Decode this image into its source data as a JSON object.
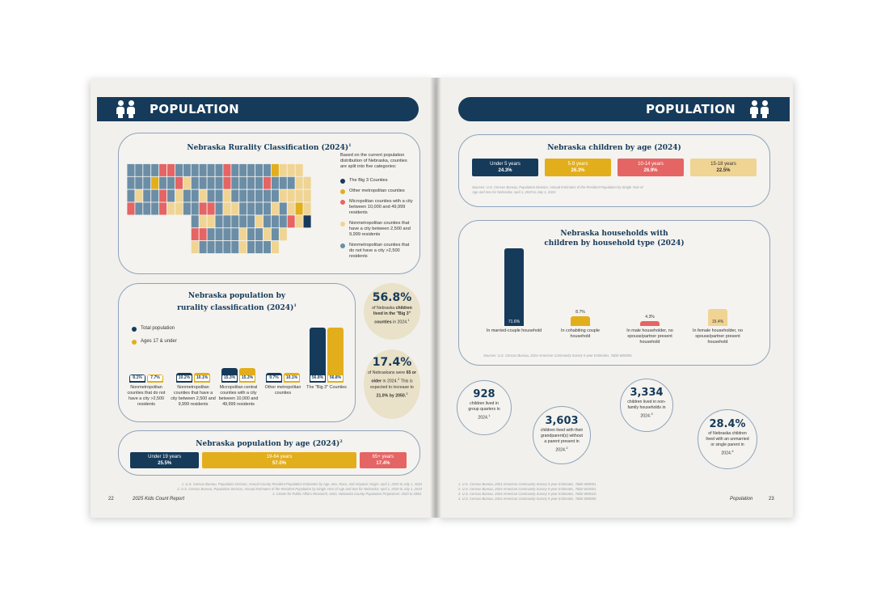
{
  "left": {
    "banner_title": "POPULATION",
    "rurality_map": {
      "title": "Nebraska Rurality Classification (2024)",
      "title_sup": "1",
      "intro": "Based on the current population distribution of Nebraska, counties are split into five categories:",
      "legend": [
        {
          "label": "The Big 3 Counties",
          "color": "#163a5a"
        },
        {
          "label": "Other metropolitan counties",
          "color": "#e3ae1c"
        },
        {
          "label": "Micropolitan counties with a city between 10,000 and 49,999 residents",
          "color": "#e56464"
        },
        {
          "label": "Nonmetropolitan counties that have a city between 2,500 and 9,999 residents",
          "color": "#f0d493"
        },
        {
          "label": "Nonmetropolitan counties that do not have a city >2,500 residents",
          "color": "#6b8ea6"
        }
      ]
    },
    "rurality_chart": {
      "title_line1": "Nebraska population by",
      "title_line2": "rurality classification (2024)",
      "title_sup": "1",
      "legend": [
        {
          "label": "Total population",
          "color": "#163a5a"
        },
        {
          "label": "Ages 17 & under",
          "color": "#e3ae1c"
        }
      ],
      "groups": [
        {
          "label": "Nonmetropolitan counties that do not have a city >2,500 residents",
          "total": "8.1%",
          "kids": "7.7%"
        },
        {
          "label": "Nonmetropolitan counties that have a city between 2,500 and 9,999 residents",
          "total": "10.2%",
          "kids": "10.1%"
        },
        {
          "label": "Micropolitan central counties with a city between 10,000 and 49,999 residents",
          "total": "15.3%",
          "kids": "15.3%"
        },
        {
          "label": "Other metropolitan counties",
          "total": "9.7%",
          "kids": "10.1%"
        },
        {
          "label": "The \"Big 3\" Counties",
          "total": "56.8%",
          "kids": "56.8%"
        }
      ]
    },
    "stat_big3": {
      "value": "56.8%",
      "text1": "of Nebraska",
      "text_bold": "children lived in the \"Big 3\" counties",
      "text2": "in 2024.",
      "sup": "1"
    },
    "stat_65": {
      "value": "17.4%",
      "text1": "of Nebraskans were",
      "bold1": "65 or older",
      "text2": "in 2024.",
      "sup1": "2",
      "text3": "This is expected to increase to",
      "bold2": "21.0% by 2050.",
      "sup2": "3"
    },
    "age_chart": {
      "title": "Nebraska population by age (2024)",
      "title_sup": "2",
      "segments": [
        {
          "label": "Under 19 years",
          "value": "25.5%",
          "color": "#163a5a"
        },
        {
          "label": "19-64 years",
          "value": "57.0%",
          "color": "#e3ae1c"
        },
        {
          "label": "65+ years",
          "value": "17.4%",
          "color": "#e56464"
        }
      ]
    },
    "sources": [
      "1. U.S. Census Bureau, Population Division, Annual County Resident Population Estimates by Age, Sex, Race, and Hispanic Origin: April 1, 2020 to July 1, 2024",
      "2. U.S. Census Bureau, Population Division, Annual Estimates of the Resident Population by Single Year of Age and Sex for Nebraska: April 1, 2020 to July 1, 2024",
      "3. Center for Public Affairs Research, UNO, Nebraska County Population Projections: 2020 to 2050."
    ],
    "page_number": "22",
    "footer_label": "2025 Kids Count Report"
  },
  "right": {
    "banner_title": "POPULATION",
    "children_by_age": {
      "title": "Nebraska children by age (2024)",
      "segments": [
        {
          "label": "Under 5 years",
          "value": "24.3%",
          "color": "#163a5a"
        },
        {
          "label": "5-9 years",
          "value": "26.3%",
          "color": "#e3ae1c"
        },
        {
          "label": "10-14 years",
          "value": "26.9%",
          "color": "#e56464"
        },
        {
          "label": "15-18 years",
          "value": "22.5%",
          "color": "#f0d493"
        }
      ],
      "source": "Sources: U.S. Census Bureau, Population Division, Annual Estimates of the Resident Population by Single Year of Age and Sex for Nebraska: April 1, 2020 to July 1, 2024"
    },
    "households": {
      "title_line1": "Nebraska households with",
      "title_line2": "children by household type (2024)",
      "bars": [
        {
          "label": "In married-couple household",
          "value": 71.6,
          "display": "71.6%",
          "color": "#163a5a"
        },
        {
          "label": "In cohabiting couple household",
          "value": 8.7,
          "display": "8.7%",
          "color": "#e3ae1c"
        },
        {
          "label": "In male householder, no spouse/partner present household",
          "value": 4.3,
          "display": "4.3%",
          "color": "#e56464"
        },
        {
          "label": "In female householder, no spouse/partner present household",
          "value": 15.4,
          "display": "15.4%",
          "color": "#f0d493"
        }
      ],
      "source": "Sources: U.S. Census Bureau, 2024 American Community Survey 5-year Estimates, Table B09005."
    },
    "stats": [
      {
        "value": "928",
        "text": "children lived in group quarters in 2024.",
        "sup": "1"
      },
      {
        "value": "3,603",
        "text": "children lived with their grandparent(s) without a parent present in 2024.",
        "sup": "2"
      },
      {
        "value": "3,334",
        "text": "children lived in non-family households in 2024.",
        "sup": "3"
      },
      {
        "value": "28.4%",
        "text": "of Nebraska children lived with an unmarried or single parent in 2024.",
        "sup": "4"
      }
    ],
    "sources": [
      "1. U.S. Census Bureau, 2024 American Community Survey 5-year Estimates, Table B09001.",
      "2. U.S. Census Bureau, 2024 American Community Survey 5-year Estimates, Table B10001.",
      "3. U.S. Census Bureau, 2024 American Community Survey 5-year Estimates, Table B09010.",
      "4. U.S. Census Bureau, 2024 American Community Survey 5-year Estimates, Table B09005."
    ],
    "footer_label": "Population",
    "page_number": "23"
  }
}
